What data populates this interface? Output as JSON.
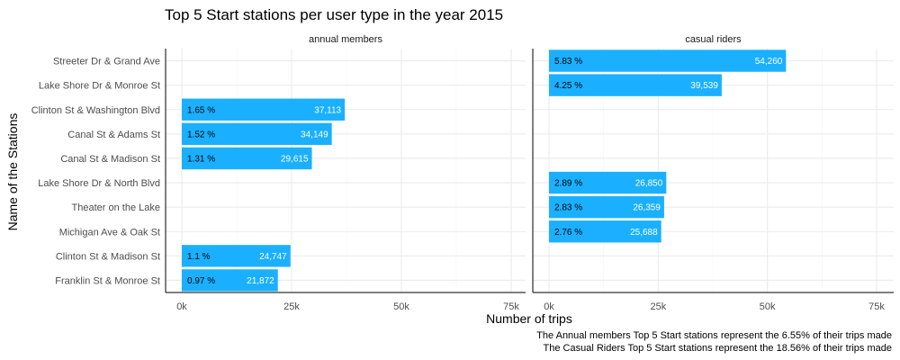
{
  "chart_data": {
    "type": "bar",
    "orientation": "horizontal",
    "faceted": true,
    "title": "Top 5 Start stations per user type in the year 2015",
    "xlabel": "Number of trips",
    "ylabel": "Name of the Stations",
    "xlim": [
      0,
      75000
    ],
    "x_ticks": [
      0,
      25000,
      50000,
      75000
    ],
    "x_tick_labels": [
      "0k",
      "25k",
      "50k",
      "75k"
    ],
    "grid": true,
    "colors": {
      "bar": "#1AB0FF"
    },
    "categories": [
      "Streeter Dr & Grand Ave",
      "Lake Shore Dr & Monroe St",
      "Clinton St & Washington Blvd",
      "Canal St & Adams St",
      "Canal St & Madison St",
      "Lake Shore Dr & North Blvd",
      "Theater on the Lake",
      "Michigan Ave & Oak St",
      "Clinton St & Madison St",
      "Franklin St & Monroe St"
    ],
    "panels": [
      {
        "name": "annual members",
        "bars": [
          {
            "category": "Clinton St & Washington Blvd",
            "value": 37113,
            "value_label": "37,113",
            "pct_label": "1.65 %"
          },
          {
            "category": "Canal St & Adams St",
            "value": 34149,
            "value_label": "34,149",
            "pct_label": "1.52 %"
          },
          {
            "category": "Canal St & Madison St",
            "value": 29615,
            "value_label": "29,615",
            "pct_label": "1.31 %"
          },
          {
            "category": "Clinton St & Madison St",
            "value": 24747,
            "value_label": "24,747",
            "pct_label": "1.1 %"
          },
          {
            "category": "Franklin St & Monroe St",
            "value": 21872,
            "value_label": "21,872",
            "pct_label": "0.97 %"
          }
        ]
      },
      {
        "name": "casual riders",
        "bars": [
          {
            "category": "Streeter Dr & Grand Ave",
            "value": 54260,
            "value_label": "54,260",
            "pct_label": "5.83 %"
          },
          {
            "category": "Lake Shore Dr & Monroe St",
            "value": 39539,
            "value_label": "39,539",
            "pct_label": "4.25 %"
          },
          {
            "category": "Lake Shore Dr & North Blvd",
            "value": 26850,
            "value_label": "26,850",
            "pct_label": "2.89 %"
          },
          {
            "category": "Theater on the Lake",
            "value": 26359,
            "value_label": "26,359",
            "pct_label": "2.83 %"
          },
          {
            "category": "Michigan Ave & Oak St",
            "value": 25688,
            "value_label": "25,688",
            "pct_label": "2.76 %"
          }
        ]
      }
    ],
    "caption": [
      "The Annual members Top 5 Start stations represent the 6.55% of their trips made",
      "The Casual Riders Top 5 Start stations represent the 18.56% of their trips made"
    ]
  }
}
